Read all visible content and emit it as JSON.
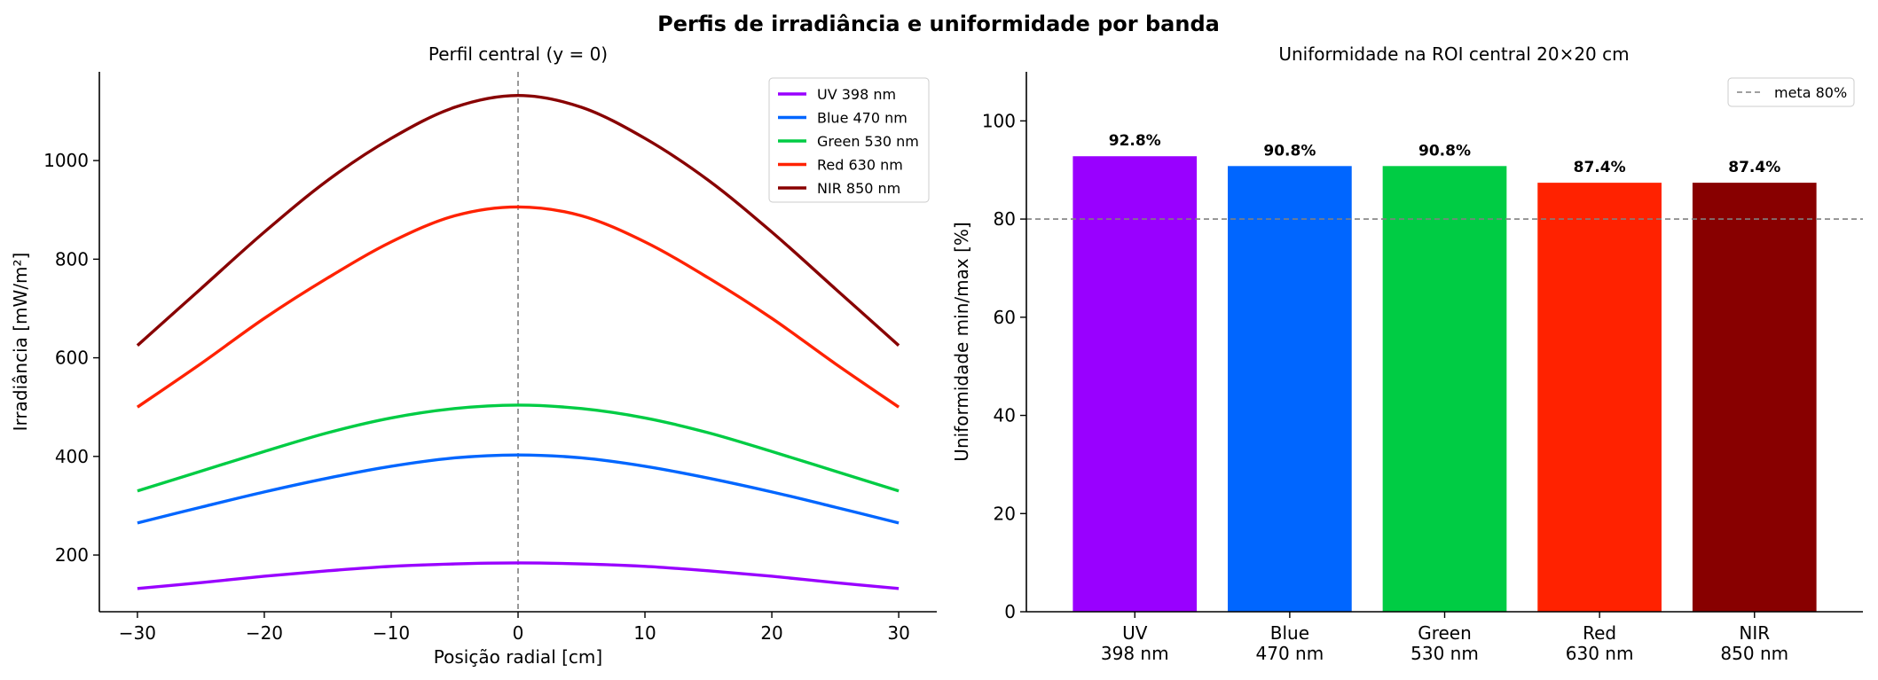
{
  "figure": {
    "title": "Perfis de irradiância e uniformidade por banda"
  },
  "chart_data": [
    {
      "type": "line",
      "title": "Perfil central (y = 0)",
      "xlabel": "Posição radial [cm]",
      "ylabel": "Irradiância [mW/m²]",
      "xlim": [
        -33,
        33
      ],
      "ylim": [
        85,
        1180
      ],
      "xticks": [
        "−30",
        "−20",
        "−10",
        "0",
        "10",
        "20",
        "30"
      ],
      "xtick_values": [
        -30,
        -20,
        -10,
        0,
        10,
        20,
        30
      ],
      "yticks": [
        "200",
        "400",
        "600",
        "800",
        "1000"
      ],
      "ytick_values": [
        200,
        400,
        600,
        800,
        1000
      ],
      "vline_x": 0,
      "legend_position": "upper-right",
      "x": [
        -30,
        -25,
        -20,
        -15,
        -10,
        -5,
        0,
        5,
        10,
        15,
        20,
        25,
        30
      ],
      "series": [
        {
          "name": "UV 398 nm",
          "color": "#9900ff",
          "values": [
            132,
            144,
            157,
            168,
            177,
            182,
            184,
            182,
            177,
            168,
            157,
            144,
            132
          ]
        },
        {
          "name": "Blue 470 nm",
          "color": "#0066ff",
          "values": [
            265,
            297,
            328,
            356,
            380,
            397,
            403,
            397,
            380,
            356,
            328,
            297,
            265
          ]
        },
        {
          "name": "Green 530 nm",
          "color": "#00cc44",
          "values": [
            330,
            370,
            410,
            448,
            478,
            497,
            504,
            497,
            478,
            448,
            410,
            370,
            330
          ]
        },
        {
          "name": "Red 630 nm",
          "color": "#ff2200",
          "values": [
            500,
            588,
            680,
            762,
            835,
            888,
            906,
            888,
            835,
            762,
            680,
            588,
            500
          ]
        },
        {
          "name": "NIR 850 nm",
          "color": "#880000",
          "values": [
            625,
            740,
            855,
            960,
            1045,
            1108,
            1132,
            1108,
            1045,
            960,
            855,
            740,
            625
          ]
        }
      ]
    },
    {
      "type": "bar",
      "title": "Uniformidade na ROI central 20×20 cm",
      "xlabel": "",
      "ylabel": "Uniformidade min/max [%]",
      "ylim": [
        0,
        110
      ],
      "yticks": [
        "0",
        "20",
        "40",
        "60",
        "80",
        "100"
      ],
      "ytick_values": [
        0,
        20,
        40,
        60,
        80,
        100
      ],
      "categories": [
        {
          "line1": "UV",
          "line2": "398 nm"
        },
        {
          "line1": "Blue",
          "line2": "470 nm"
        },
        {
          "line1": "Green",
          "line2": "530 nm"
        },
        {
          "line1": "Red",
          "line2": "630 nm"
        },
        {
          "line1": "NIR",
          "line2": "850 nm"
        }
      ],
      "values": [
        92.8,
        90.8,
        90.8,
        87.4,
        87.4
      ],
      "data_labels": [
        "92.8%",
        "90.8%",
        "90.8%",
        "87.4%",
        "87.4%"
      ],
      "colors": [
        "#9900ff",
        "#0066ff",
        "#00cc44",
        "#ff2200",
        "#880000"
      ],
      "reference_line": {
        "value": 80,
        "label": "meta 80%",
        "color": "#808080"
      },
      "legend_position": "upper-right"
    }
  ]
}
